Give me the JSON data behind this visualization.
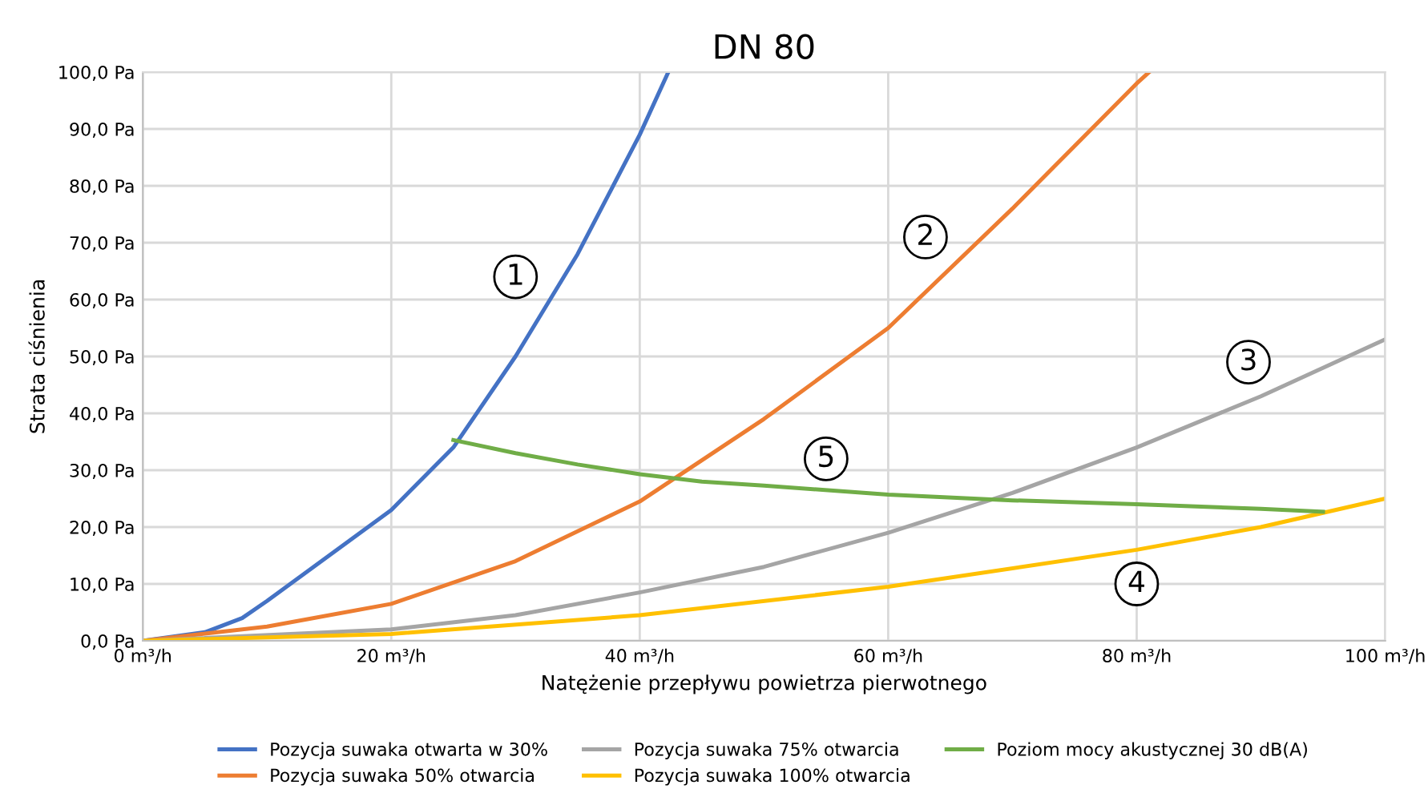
{
  "chart_data": {
    "type": "line",
    "title": "DN 80",
    "xlabel": "Natężenie przepływu powietrza pierwotnego",
    "ylabel": "Strata ciśnienia",
    "xlim": [
      0,
      100
    ],
    "ylim": [
      0,
      100
    ],
    "xticks": [
      {
        "value": 0,
        "label": "0 m³/h"
      },
      {
        "value": 20,
        "label": "20 m³/h"
      },
      {
        "value": 40,
        "label": "40 m³/h"
      },
      {
        "value": 60,
        "label": "60 m³/h"
      },
      {
        "value": 80,
        "label": "80 m³/h"
      },
      {
        "value": 100,
        "label": "100 m³/h"
      }
    ],
    "yticks": [
      {
        "value": 0,
        "label": "0,0 Pa"
      },
      {
        "value": 10,
        "label": "10,0 Pa"
      },
      {
        "value": 20,
        "label": "20,0 Pa"
      },
      {
        "value": 30,
        "label": "30,0 Pa"
      },
      {
        "value": 40,
        "label": "40,0 Pa"
      },
      {
        "value": 50,
        "label": "50,0 Pa"
      },
      {
        "value": 60,
        "label": "60,0 Pa"
      },
      {
        "value": 70,
        "label": "70,0 Pa"
      },
      {
        "value": 80,
        "label": "80,0 Pa"
      },
      {
        "value": 90,
        "label": "90,0 Pa"
      },
      {
        "value": 100,
        "label": "100,0 Pa"
      }
    ],
    "grid": true,
    "legend": "bottom",
    "marker": "none",
    "line_style": "solid",
    "series": [
      {
        "name": "Pozycja suwaka otwarta w 30%",
        "color": "#4472c4",
        "x": [
          0,
          5,
          8,
          10,
          15,
          20,
          25,
          30,
          35,
          40,
          42.3
        ],
        "values": [
          0,
          1.5,
          4,
          7,
          15,
          23,
          34,
          50,
          68,
          89,
          100
        ]
      },
      {
        "name": "Pozycja suwaka 50% otwarcia",
        "color": "#ed7d31",
        "x": [
          0,
          10,
          20,
          30,
          40,
          50,
          60,
          70,
          80,
          81
        ],
        "values": [
          0,
          2.5,
          6.5,
          14,
          24.5,
          39,
          55,
          76,
          98,
          100
        ]
      },
      {
        "name": "Pozycja suwaka 75% otwarcia",
        "color": "#a5a5a5",
        "x": [
          0,
          20,
          30,
          40,
          50,
          60,
          70,
          80,
          90,
          100
        ],
        "values": [
          0,
          2,
          4.5,
          8.5,
          13,
          19,
          26,
          34,
          43,
          53
        ]
      },
      {
        "name": "Pozycja suwaka 100% otwarcia",
        "color": "#ffc000",
        "x": [
          0,
          20,
          40,
          60,
          80,
          90,
          95,
          100
        ],
        "values": [
          0,
          1.2,
          4.5,
          9.5,
          16,
          20,
          22.5,
          25
        ]
      },
      {
        "name": "Poziom mocy akustycznej 30 dB(A)",
        "color": "#70ad47",
        "x": [
          25,
          30,
          35,
          40,
          45,
          50,
          60,
          70,
          80,
          90,
          95
        ],
        "values": [
          35.3,
          33,
          31,
          29.3,
          28,
          27.3,
          25.7,
          24.7,
          24,
          23.2,
          22.7
        ]
      }
    ],
    "annotations": [
      {
        "text": "1",
        "x": 30,
        "y": 64
      },
      {
        "text": "2",
        "x": 63,
        "y": 71
      },
      {
        "text": "3",
        "x": 89,
        "y": 49
      },
      {
        "text": "4",
        "x": 80,
        "y": 10
      },
      {
        "text": "5",
        "x": 55,
        "y": 32
      }
    ]
  }
}
